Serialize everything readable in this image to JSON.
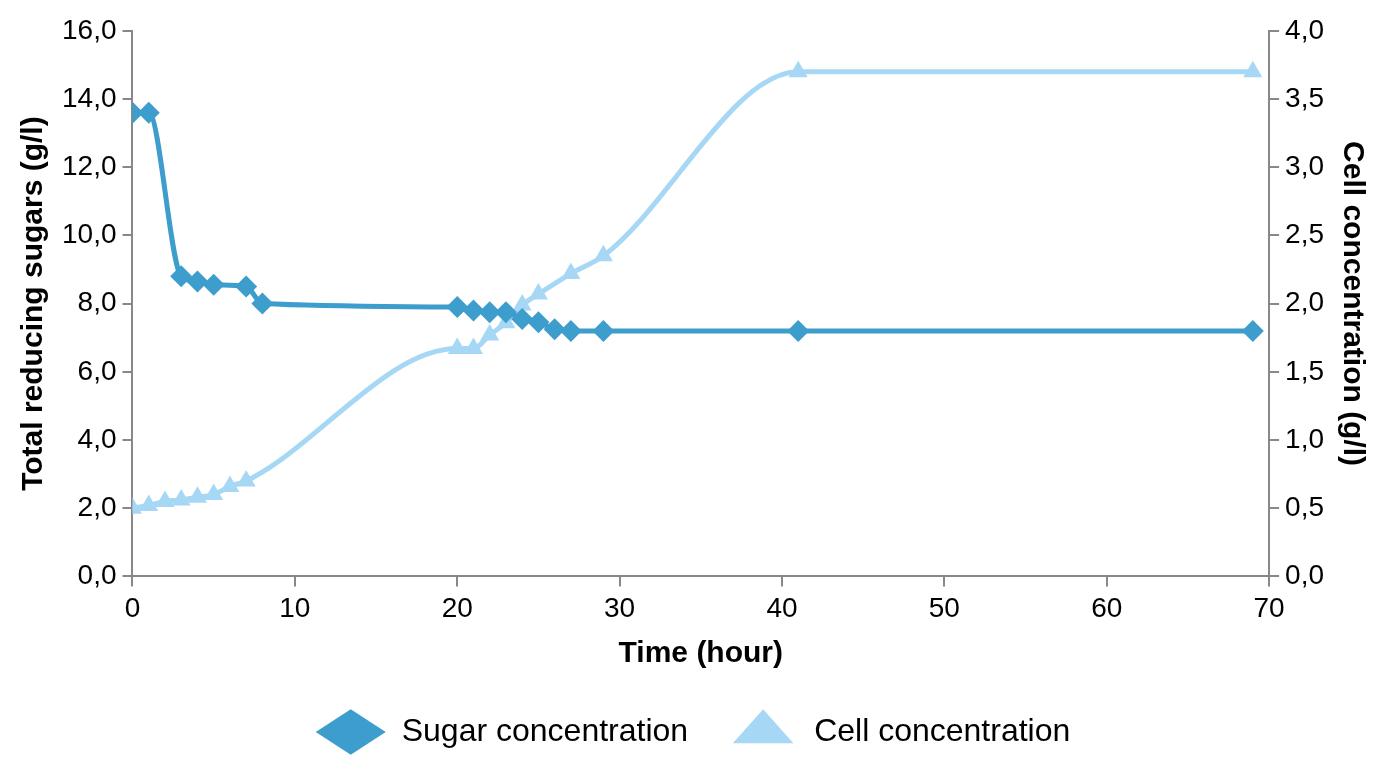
{
  "chart_data": {
    "type": "line",
    "xlabel": "Time (hour)",
    "ylabel": "Total reducing sugars (g/l)",
    "y2label": "Cell concentration (g/l)",
    "xlim": [
      0,
      70
    ],
    "xticks": [
      0,
      10,
      20,
      30,
      40,
      50,
      60,
      70
    ],
    "ylim": [
      0,
      16
    ],
    "yticks": [
      {
        "value": 0,
        "label": "0,0"
      },
      {
        "value": 2,
        "label": "2,0"
      },
      {
        "value": 4,
        "label": "4,0"
      },
      {
        "value": 6,
        "label": "6,0"
      },
      {
        "value": 8,
        "label": "8,0"
      },
      {
        "value": 10,
        "label": "10,0"
      },
      {
        "value": 12,
        "label": "12,0"
      },
      {
        "value": 14,
        "label": "14,0"
      },
      {
        "value": 16,
        "label": "16,0"
      }
    ],
    "y2lim": [
      0,
      4
    ],
    "y2ticks": [
      {
        "value": 0,
        "label": "0,0"
      },
      {
        "value": 0.5,
        "label": "0,5"
      },
      {
        "value": 1,
        "label": "1,0"
      },
      {
        "value": 1.5,
        "label": "1,5"
      },
      {
        "value": 2,
        "label": "2,0"
      },
      {
        "value": 2.5,
        "label": "2,5"
      },
      {
        "value": 3,
        "label": "3,0"
      },
      {
        "value": 3.5,
        "label": "3,5"
      },
      {
        "value": 4,
        "label": "4,0"
      }
    ],
    "grid": false,
    "legend": "bottom",
    "line_style": "solid",
    "series": [
      {
        "name": "Sugar concentration",
        "color": "#3d9dcc",
        "marker": "diamond",
        "x": [
          0,
          1,
          3,
          4,
          5,
          7,
          8,
          20,
          21,
          22,
          23,
          24,
          25,
          26,
          27,
          29,
          41,
          69
        ],
        "values": [
          13.6,
          13.6,
          8.8,
          8.65,
          8.55,
          8.5,
          8.0,
          7.9,
          7.8,
          7.75,
          7.75,
          7.55,
          7.45,
          7.25,
          7.2,
          7.2,
          7.2,
          7.2
        ]
      },
      {
        "name": "Cell concentration",
        "color": "#a6d7f5",
        "marker": "triangle",
        "axis": "y2",
        "x": [
          0,
          1,
          2,
          3,
          4,
          5,
          6,
          7,
          20,
          21,
          22,
          23,
          24,
          25,
          27,
          29,
          41,
          69
        ],
        "values": [
          0.5,
          0.52,
          0.55,
          0.56,
          0.58,
          0.6,
          0.66,
          0.7,
          1.67,
          1.67,
          1.77,
          1.86,
          1.99,
          2.07,
          2.22,
          2.35,
          3.7,
          3.7
        ]
      }
    ]
  }
}
